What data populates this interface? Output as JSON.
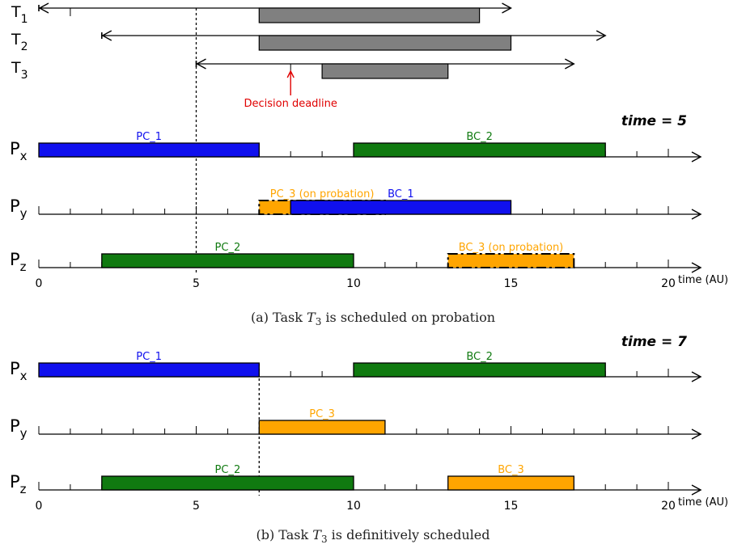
{
  "colors": {
    "blue": "#1010ee",
    "green": "#107a10",
    "orange": "#ffa500",
    "gray": "#808080",
    "red": "#e00000",
    "axis": "#000000"
  },
  "timeline": {
    "tasks": [
      {
        "label": "T",
        "sub": "1",
        "span": [
          0,
          15
        ],
        "box": [
          7,
          14
        ],
        "ticks": [
          1
        ]
      },
      {
        "label": "T",
        "sub": "2",
        "span": [
          2,
          18
        ],
        "box": [
          7,
          15
        ],
        "ticks": []
      },
      {
        "label": "T",
        "sub": "3",
        "span": [
          5,
          17
        ],
        "box": [
          9,
          13
        ],
        "ticks": [
          8
        ]
      }
    ],
    "deadline": {
      "label": "Decision deadline",
      "time": 8
    }
  },
  "panels": [
    {
      "time_label": "time = 5",
      "caption_prefix": "(a) Task ",
      "caption_var": "T",
      "caption_sub": "3",
      "caption_suffix": " is scheduled on probation",
      "marker_time": 5,
      "processors": [
        {
          "label": "P",
          "sub": "x",
          "bars": [
            {
              "label": "PC_1",
              "start": 0,
              "end": 7,
              "color": "blue",
              "probation": false
            },
            {
              "label": "BC_2",
              "start": 10,
              "end": 18,
              "color": "green",
              "probation": false
            }
          ]
        },
        {
          "label": "P",
          "sub": "y",
          "bars": [
            {
              "label": "PC_3 (on probation)",
              "start": 7,
              "end": 11,
              "color": "orange",
              "probation": true
            },
            {
              "label": "BC_1",
              "start": 8,
              "end": 15,
              "color": "blue",
              "probation": false
            }
          ]
        },
        {
          "label": "P",
          "sub": "z",
          "bars": [
            {
              "label": "PC_2",
              "start": 2,
              "end": 10,
              "color": "green",
              "probation": false
            },
            {
              "label": "BC_3 (on probation)",
              "start": 13,
              "end": 17,
              "color": "orange",
              "probation": true
            }
          ]
        }
      ]
    },
    {
      "time_label": "time = 7",
      "caption_prefix": "(b) Task ",
      "caption_var": "T",
      "caption_sub": "3",
      "caption_suffix": " is definitively scheduled",
      "marker_time": 7,
      "processors": [
        {
          "label": "P",
          "sub": "x",
          "bars": [
            {
              "label": "PC_1",
              "start": 0,
              "end": 7,
              "color": "blue",
              "probation": false
            },
            {
              "label": "BC_2",
              "start": 10,
              "end": 18,
              "color": "green",
              "probation": false
            }
          ]
        },
        {
          "label": "P",
          "sub": "y",
          "bars": [
            {
              "label": "PC_3",
              "start": 7,
              "end": 11,
              "color": "orange",
              "probation": false
            }
          ]
        },
        {
          "label": "P",
          "sub": "z",
          "bars": [
            {
              "label": "PC_2",
              "start": 2,
              "end": 10,
              "color": "green",
              "probation": false
            },
            {
              "label": "BC_3",
              "start": 13,
              "end": 17,
              "color": "orange",
              "probation": false
            }
          ]
        }
      ]
    }
  ],
  "axis": {
    "min": 0,
    "max": 20,
    "major_ticks": [
      0,
      5,
      10,
      15,
      20
    ],
    "tick_labels": [
      "0",
      "5",
      "10",
      "15",
      "20"
    ],
    "unit_label": "time (AU)"
  }
}
